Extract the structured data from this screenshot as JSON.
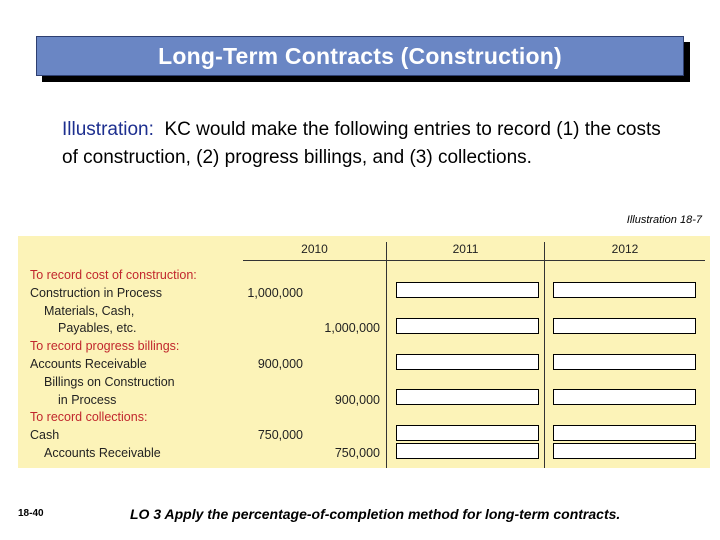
{
  "title": "Long-Term Contracts (Construction)",
  "intro": {
    "label": "Illustration:",
    "text": "KC would make the following entries to record (1) the costs of construction, (2) progress billings, and (3) collections."
  },
  "illustration_ref": "Illustration 18-7",
  "table": {
    "columns": [
      "2010",
      "2011",
      "2012"
    ],
    "rows": [
      {
        "text": "To record cost of construction:",
        "heading": true,
        "indent": 0,
        "debit": "",
        "credit": ""
      },
      {
        "text": "Construction in Process",
        "heading": false,
        "indent": 0,
        "debit": "1,000,000",
        "credit": ""
      },
      {
        "text": "Materials, Cash,",
        "heading": false,
        "indent": 1,
        "debit": "",
        "credit": ""
      },
      {
        "text": "Payables, etc.",
        "heading": false,
        "indent": 2,
        "debit": "",
        "credit": "1,000,000"
      },
      {
        "text": "To record progress billings:",
        "heading": true,
        "indent": 0,
        "debit": "",
        "credit": ""
      },
      {
        "text": "Accounts Receivable",
        "heading": false,
        "indent": 0,
        "debit": "900,000",
        "credit": ""
      },
      {
        "text": "Billings on Construction",
        "heading": false,
        "indent": 1,
        "debit": "",
        "credit": ""
      },
      {
        "text": "in Process",
        "heading": false,
        "indent": 2,
        "debit": "",
        "credit": "900,000"
      },
      {
        "text": "To record collections:",
        "heading": true,
        "indent": 0,
        "debit": "",
        "credit": ""
      },
      {
        "text": "Cash",
        "heading": false,
        "indent": 0,
        "debit": "750,000",
        "credit": ""
      },
      {
        "text": "Accounts Receivable",
        "heading": false,
        "indent": 1,
        "debit": "",
        "credit": "750,000"
      }
    ]
  },
  "footer": {
    "slide_number": "18-40",
    "learning_objective": "LO 3  Apply the percentage-of-completion method for long-term contracts."
  },
  "colors": {
    "title_bar": "#6a86c4",
    "panel": "#fcf3b8",
    "heading_text": "#c1272d",
    "label_text": "#1d2f8f"
  }
}
